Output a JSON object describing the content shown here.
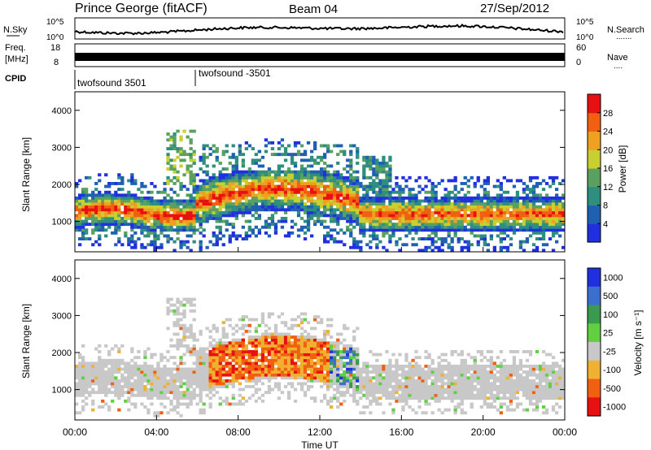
{
  "header": {
    "station": "Prince George (fitACF)",
    "beam": "Beam 04",
    "date": "27/Sep/2012"
  },
  "summary_panels": {
    "nsky_label": "N.Sky",
    "nsearch_label": "N.Search",
    "nsearch_dots": ".......",
    "nsky_ticks": [
      "10^5",
      "10^0"
    ],
    "nsearch_ticks": [
      "10^5",
      "10^0"
    ],
    "freq_label_line1": "Freq.",
    "freq_label_line2": "[MHz]",
    "freq_ticks": [
      "18",
      "8"
    ],
    "nave_label": "Nave",
    "nave_dots": "....",
    "nave_ticks": [
      "60",
      "0"
    ],
    "cpid_label": "CPID",
    "cpid_1": "twofsound 3501",
    "cpid_2": "twofsound -3501"
  },
  "chart_data": [
    {
      "type": "heatmap",
      "name": "Power",
      "ylabel": "Slant Range [km]",
      "ylim": [
        180,
        4500
      ],
      "yticks": [
        "1000",
        "2000",
        "3000",
        "4000"
      ],
      "colorbar_label": "Power [dB]",
      "colorbar_ticks": [
        "4",
        "8",
        "12",
        "16",
        "20",
        "24",
        "28"
      ],
      "colors": [
        "#2030e0",
        "#2060b0",
        "#2f8f7f",
        "#5aa060",
        "#c8d030",
        "#f0a020",
        "#f06010",
        "#e81010"
      ]
    },
    {
      "type": "heatmap",
      "name": "Velocity",
      "ylabel": "Slant Range [km]",
      "ylim": [
        180,
        4500
      ],
      "yticks": [
        "1000",
        "2000",
        "3000",
        "4000"
      ],
      "colorbar_label": "Velocity [m s⁻¹]",
      "colorbar_ticks": [
        "1000",
        "500",
        "100",
        "25",
        "-25",
        "-100",
        "-500",
        "-1000"
      ],
      "colors": [
        "#2030e0",
        "#3a6fd0",
        "#3a9a50",
        "#60d040",
        "#c8c8c8",
        "#f0b030",
        "#f06010",
        "#e81010"
      ]
    }
  ],
  "time_axis": {
    "label": "Time UT",
    "ticks": [
      "00:00",
      "04:00",
      "08:00",
      "12:00",
      "16:00",
      "20:00",
      "00:00"
    ]
  }
}
